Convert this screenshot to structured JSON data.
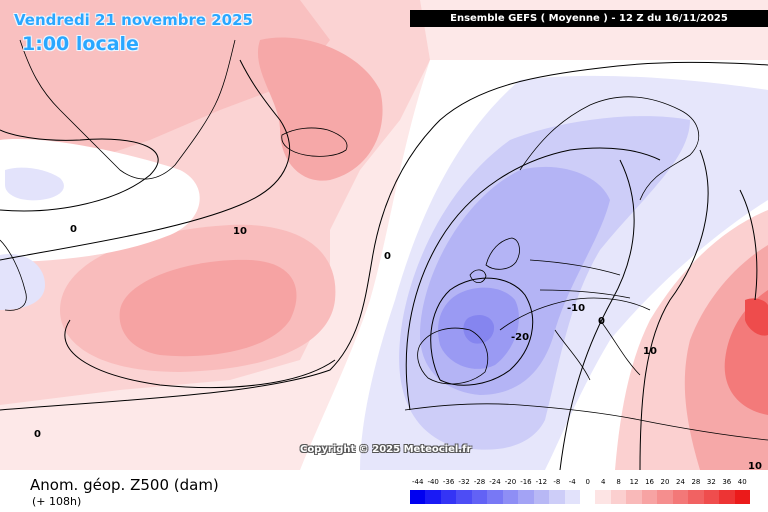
{
  "header": {
    "date": "Vendredi 21 novembre 2025",
    "time": "1:00 locale",
    "model_info": "Ensemble GEFS  ( Moyenne )  -  12 Z du 16/11/2025"
  },
  "copyright": "Copyright © 2025 Meteociel.fr",
  "footer": {
    "variable": "Anom. géop. Z500 (dam)",
    "lead": "(+ 108h)"
  },
  "legend": {
    "ticks": [
      "-44",
      "-40",
      "-36",
      "-32",
      "-28",
      "-24",
      "-20",
      "-16",
      "-12",
      "-8",
      "-4",
      "0",
      "4",
      "8",
      "12",
      "16",
      "20",
      "24",
      "28",
      "32",
      "36",
      "40"
    ],
    "colors": [
      "#0000f0",
      "#1a1af5",
      "#3434f5",
      "#4d4df5",
      "#6262f5",
      "#7878f5",
      "#8e8ef5",
      "#a3a3f5",
      "#b8b8f5",
      "#cdcdf8",
      "#e2e2fb",
      "#ffffff",
      "#fde4e4",
      "#fbcfcf",
      "#f9b9b9",
      "#f7a3a3",
      "#f58e8e",
      "#f37878",
      "#f16262",
      "#ef4d4d",
      "#ed3434",
      "#eb1a1a"
    ]
  },
  "contour_labels": {
    "l0a": "0",
    "l10a": "10",
    "l0b": "0",
    "l0c": "0",
    "lm20": "-20",
    "lm10": "-10",
    "l10b": "10",
    "l0d": "0",
    "l10c": "10"
  }
}
